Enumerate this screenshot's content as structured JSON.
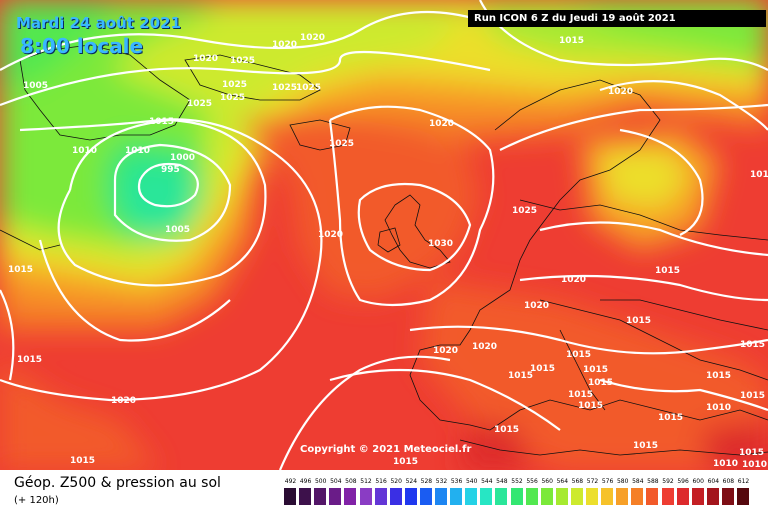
{
  "header": {
    "date": "Mardi 24 août 2021",
    "time": "8:00 locale",
    "run": "Run ICON 6 Z du Jeudi 19 août 2021"
  },
  "copyright": "Copyright © 2021 Meteociel.fr",
  "footer": {
    "title": "Géop. Z500 & pression au sol",
    "subtitle": "(+ 120h)"
  },
  "scale": [
    {
      "label": "492",
      "color": "#2a0c33"
    },
    {
      "label": "496",
      "color": "#3d114b"
    },
    {
      "label": "500",
      "color": "#531668"
    },
    {
      "label": "504",
      "color": "#6a1c88"
    },
    {
      "label": "508",
      "color": "#8122a7"
    },
    {
      "label": "512",
      "color": "#8a3cc4"
    },
    {
      "label": "516",
      "color": "#6336d6"
    },
    {
      "label": "520",
      "color": "#3a2fe4"
    },
    {
      "label": "524",
      "color": "#1f38ef"
    },
    {
      "label": "528",
      "color": "#1a5cf2"
    },
    {
      "label": "532",
      "color": "#1d86f2"
    },
    {
      "label": "536",
      "color": "#22b0ef"
    },
    {
      "label": "540",
      "color": "#25d2e6"
    },
    {
      "label": "544",
      "color": "#27e6c4"
    },
    {
      "label": "548",
      "color": "#2ae69a"
    },
    {
      "label": "552",
      "color": "#33e772"
    },
    {
      "label": "556",
      "color": "#52e850"
    },
    {
      "label": "560",
      "color": "#7be93a"
    },
    {
      "label": "564",
      "color": "#a6ea30"
    },
    {
      "label": "568",
      "color": "#cdea2e"
    },
    {
      "label": "572",
      "color": "#ecdf2c"
    },
    {
      "label": "576",
      "color": "#f6c22a"
    },
    {
      "label": "580",
      "color": "#f7a028"
    },
    {
      "label": "584",
      "color": "#f57f27"
    },
    {
      "label": "588",
      "color": "#f25a2a"
    },
    {
      "label": "592",
      "color": "#ee3d32"
    },
    {
      "label": "596",
      "color": "#dd2a2c"
    },
    {
      "label": "600",
      "color": "#c41f24"
    },
    {
      "label": "604",
      "color": "#a3151c"
    },
    {
      "label": "608",
      "color": "#7e0e15"
    },
    {
      "label": "612",
      "color": "#55080d"
    }
  ],
  "isobars": [
    {
      "value": "1005"
    },
    {
      "value": "1020"
    },
    {
      "value": "1020"
    },
    {
      "value": "1025"
    },
    {
      "value": "1025"
    },
    {
      "value": "1020"
    },
    {
      "value": "1025"
    },
    {
      "value": "1025"
    },
    {
      "value": "1025"
    },
    {
      "value": "1025"
    },
    {
      "value": "1015"
    },
    {
      "value": "1010"
    },
    {
      "value": "1010"
    },
    {
      "value": "1000"
    },
    {
      "value": "995"
    },
    {
      "value": "1005"
    },
    {
      "value": "1025"
    },
    {
      "value": "1015"
    },
    {
      "value": "1015"
    },
    {
      "value": "1020"
    },
    {
      "value": "1020"
    },
    {
      "value": "1030"
    },
    {
      "value": "1025"
    },
    {
      "value": "1020"
    },
    {
      "value": "1015"
    },
    {
      "value": "1015"
    },
    {
      "value": "1015"
    },
    {
      "value": "1020"
    },
    {
      "value": "1020"
    },
    {
      "value": "1020"
    },
    {
      "value": "1015"
    },
    {
      "value": "1015"
    },
    {
      "value": "1015"
    },
    {
      "value": "1015"
    },
    {
      "value": "1015"
    },
    {
      "value": "1015"
    },
    {
      "value": "1015"
    },
    {
      "value": "1015"
    },
    {
      "value": "1015"
    },
    {
      "value": "1015"
    },
    {
      "value": "1010"
    },
    {
      "value": "1015"
    },
    {
      "value": "1020"
    },
    {
      "value": "1015"
    },
    {
      "value": "1015"
    },
    {
      "value": "1015"
    },
    {
      "value": "1015"
    },
    {
      "value": "1015"
    },
    {
      "value": "1020"
    },
    {
      "value": "1015"
    },
    {
      "value": "1010"
    },
    {
      "value": "1010"
    }
  ]
}
